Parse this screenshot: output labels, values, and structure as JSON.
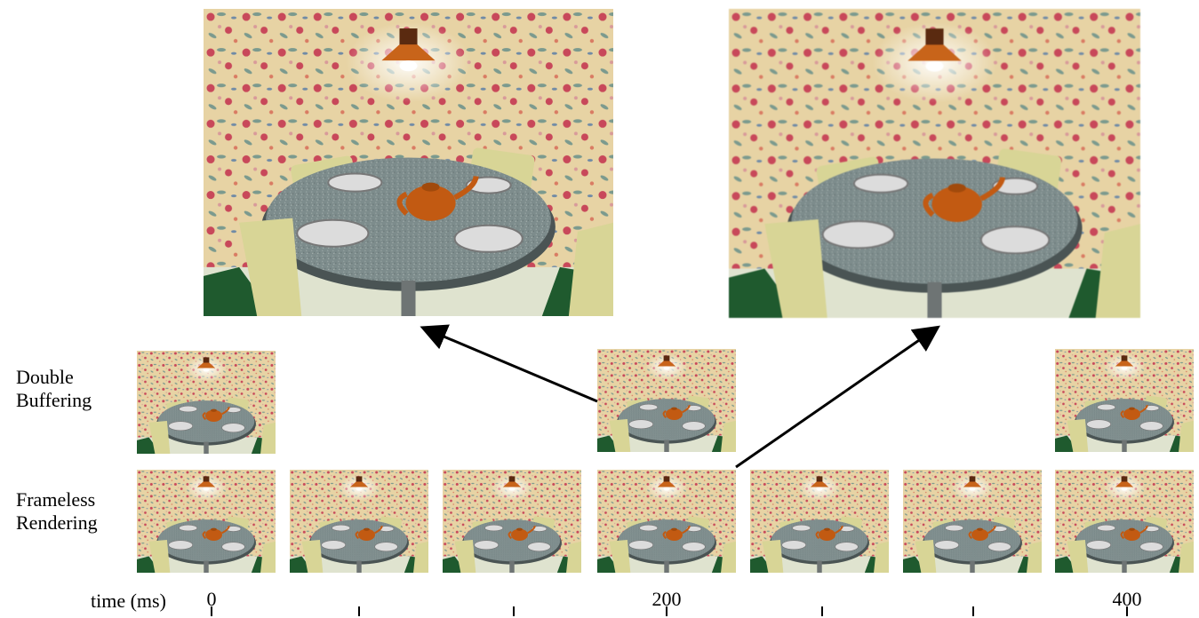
{
  "rows": {
    "double_buffering": {
      "label_line1": "Double",
      "label_line2": "Buffering"
    },
    "frameless_rendering": {
      "label_line1": "Frameless",
      "label_line2": "Rendering"
    }
  },
  "time_axis": {
    "label": "time (ms)",
    "tick_labels": [
      "0",
      "200",
      "400"
    ]
  },
  "colors": {
    "wallpaper": "#e7d3a4",
    "table_top": "#7d8c8c",
    "teapot": "#c25a12",
    "chair": "#d8d596",
    "floor_dark": "#1f5a2e",
    "lamp": "#c8641a"
  }
}
